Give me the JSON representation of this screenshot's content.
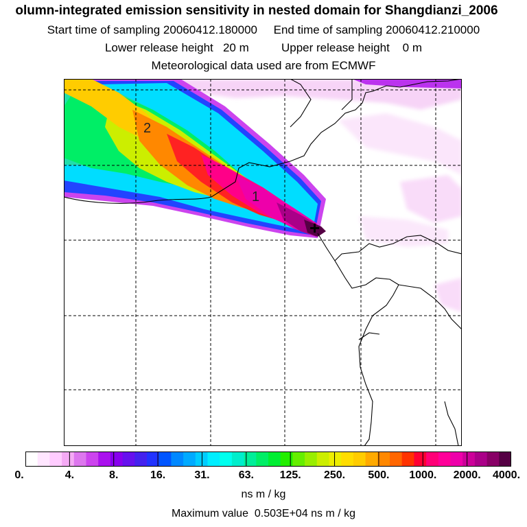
{
  "header": {
    "title": "olumn-integrated emission sensitivity in nested domain for Shangdianzi_2006",
    "sampling_line": "Start time of sampling 20060412.180000     End time of sampling 20060412.210000",
    "release_line": "Lower release height   20 m          Upper release height    0 m",
    "met_line": "Meteorological data used are from ECMWF"
  },
  "map": {
    "plume_labels": [
      "2",
      "1"
    ],
    "receptor_marker": "+"
  },
  "colorbar": {
    "tick_labels": [
      "0.",
      "4.",
      "8.",
      "16.",
      "31.",
      "63.",
      "125.",
      "250.",
      "500.",
      "1000.",
      "2000.",
      "4000."
    ],
    "unit": "ns m / kg",
    "colors": [
      "#ffffff",
      "#ffe6ff",
      "#ffccff",
      "#f5aaf5",
      "#dd77ee",
      "#cc44ee",
      "#aa11ee",
      "#8800ee",
      "#6611ee",
      "#4422ee",
      "#2233ff",
      "#0055ff",
      "#0088ff",
      "#00aaff",
      "#00ccff",
      "#00eeff",
      "#00ffee",
      "#00eecc",
      "#00ee99",
      "#00ee66",
      "#00ee33",
      "#22ee00",
      "#66ee00",
      "#99ee00",
      "#ccee00",
      "#eeee00",
      "#ffdd00",
      "#ffcc00",
      "#ffaa00",
      "#ff8800",
      "#ff6600",
      "#ff3300",
      "#ff0033",
      "#ff0077",
      "#ff0099",
      "#ee00aa",
      "#cc0099",
      "#aa0088",
      "#880066",
      "#550044"
    ]
  },
  "max_value_line": "Maximum value  0.503E+04 ns m / kg"
}
